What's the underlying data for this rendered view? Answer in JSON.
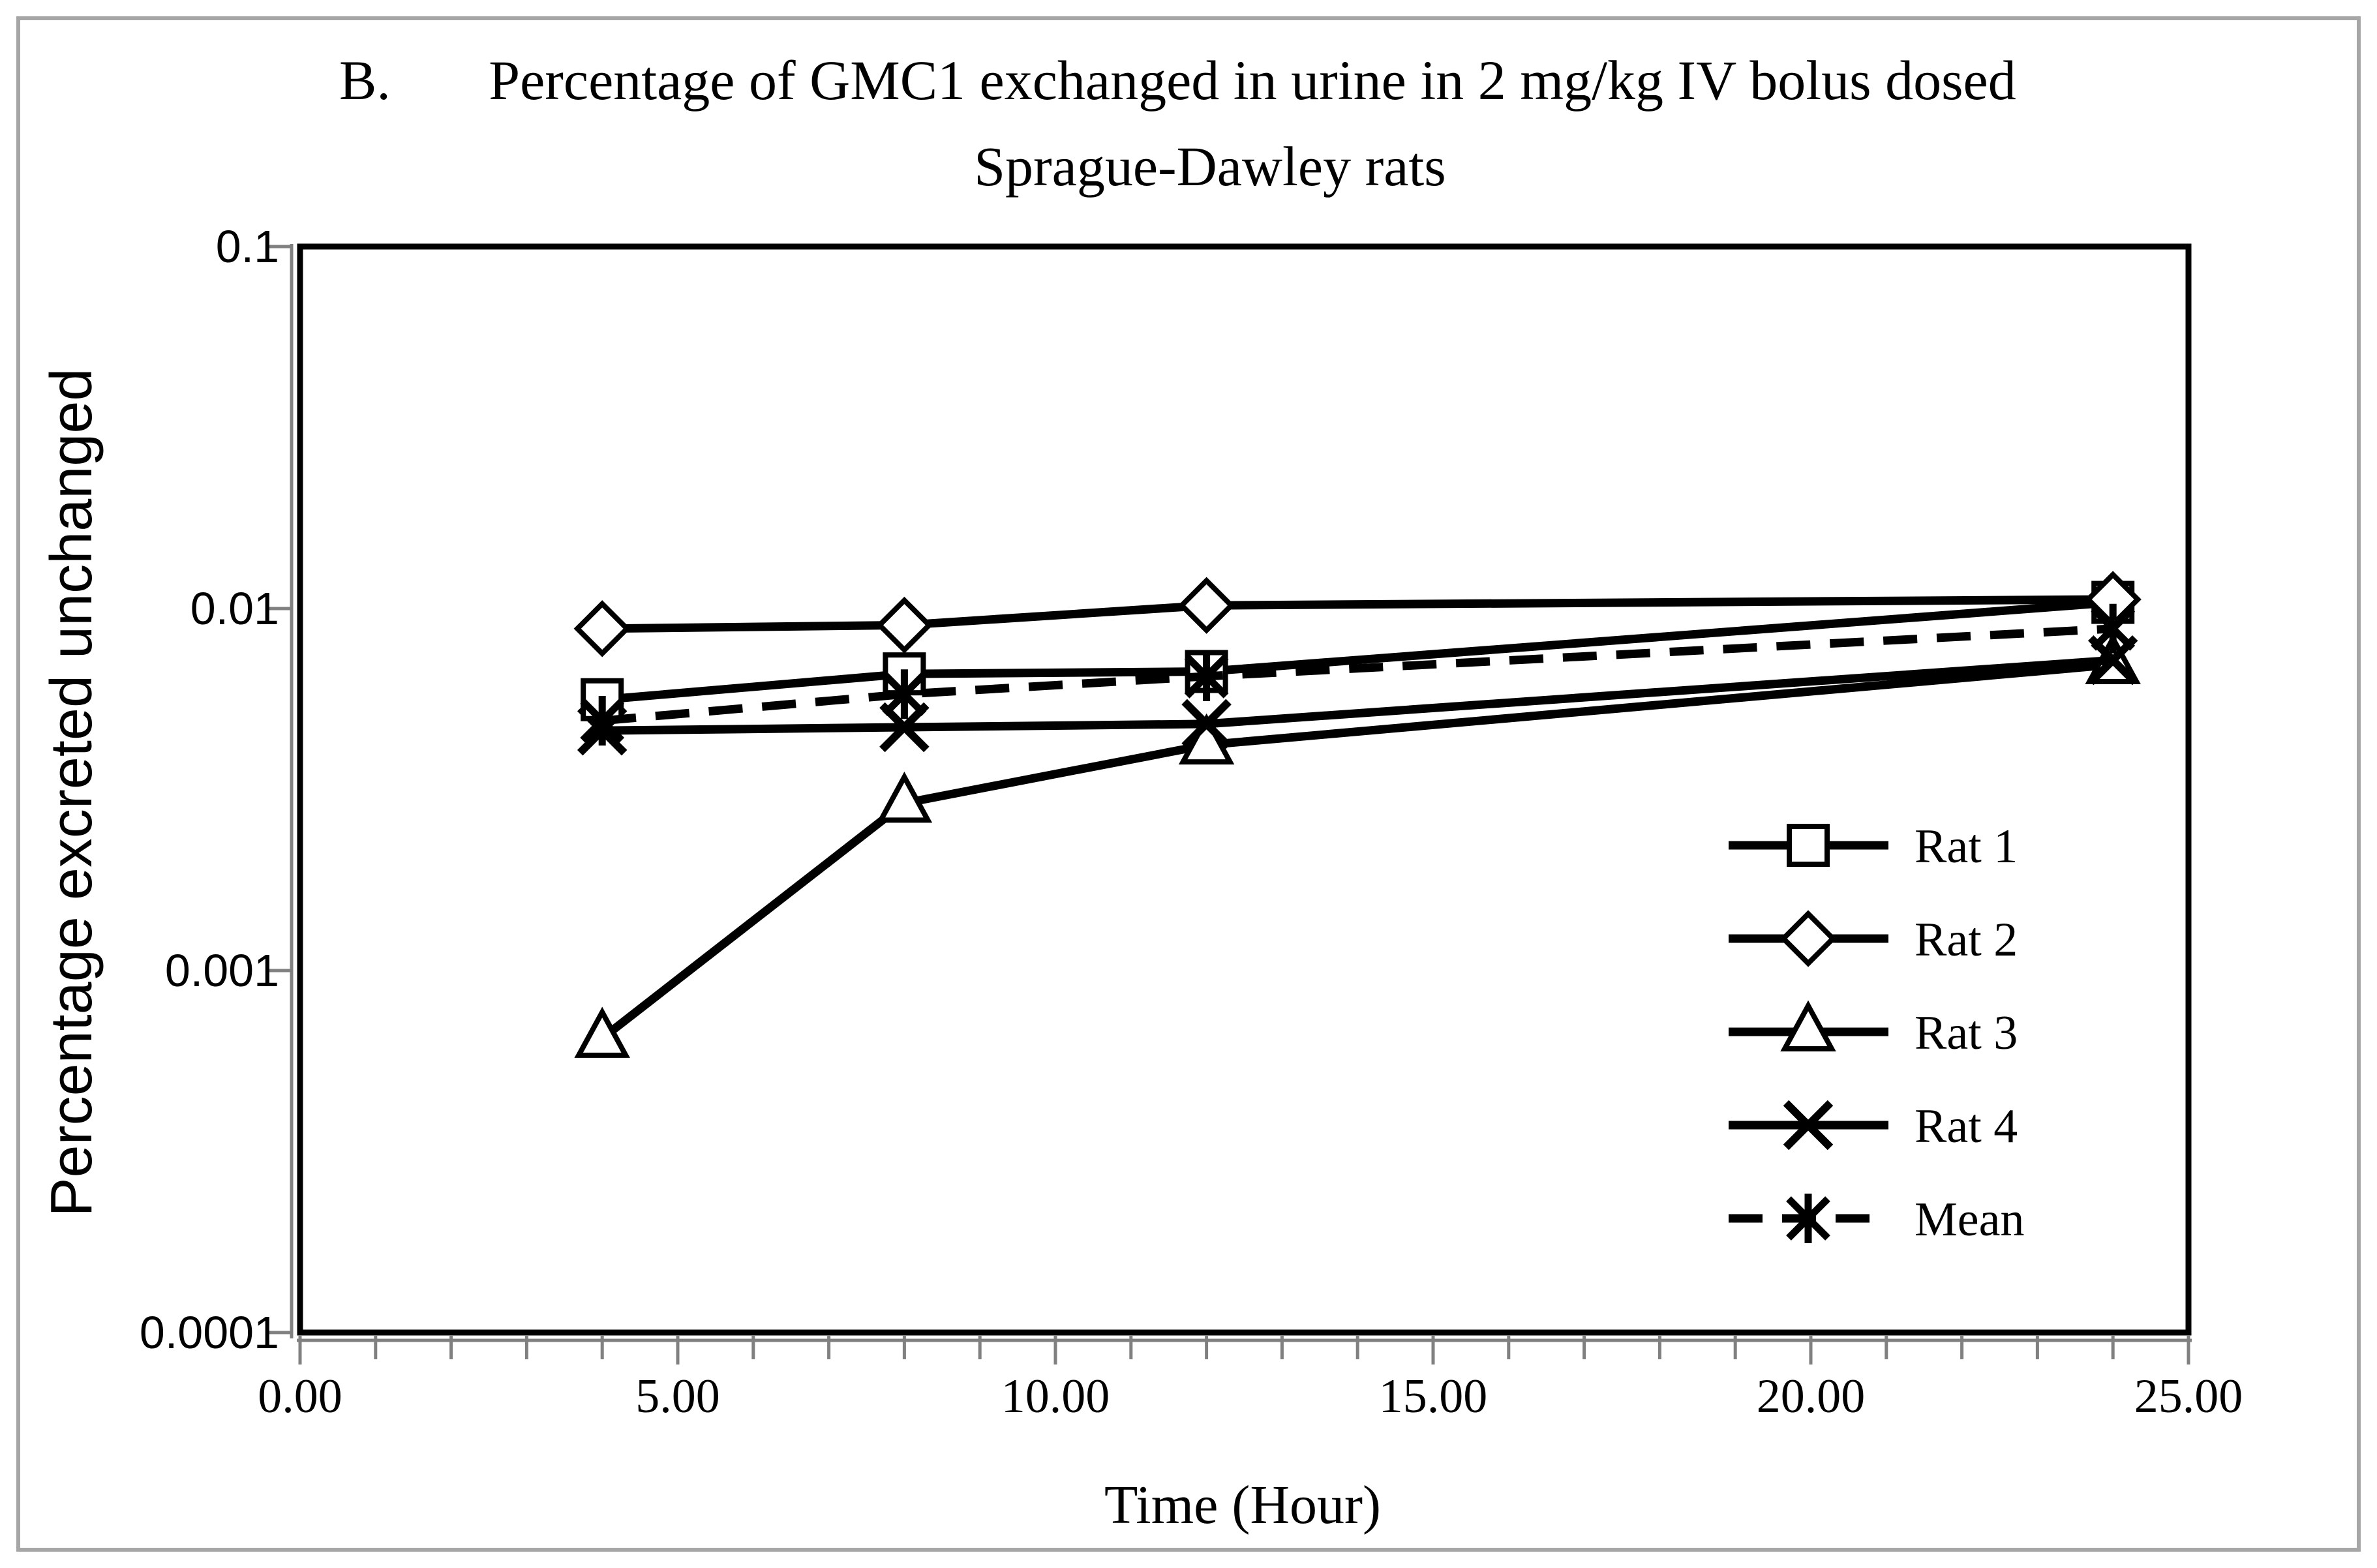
{
  "figure": {
    "title_prefix": "B.",
    "title_line1": "Percentage of GMC1 exchanged in urine in 2 mg/kg IV bolus dosed",
    "title_line2": "Sprague-Dawley rats"
  },
  "chart_data": {
    "type": "line",
    "title": "B. Percentage of GMC1 exchanged in urine in 2 mg/kg IV bolus dosed Sprague-Dawley rats",
    "xlabel": "Time (Hour)",
    "ylabel": "Percentage excreted unchanged",
    "x_scale": "linear",
    "y_scale": "log10",
    "xlim": [
      0,
      25
    ],
    "ylim": [
      0.0001,
      0.1
    ],
    "grid": false,
    "legend_position": "inside-right",
    "x_tick_labels": [
      "0.00",
      "5.00",
      "10.00",
      "15.00",
      "20.00",
      "25.00"
    ],
    "x_tick_values": [
      0,
      5,
      10,
      15,
      20,
      25
    ],
    "x_minor_tick_step": 1,
    "y_tick_labels": [
      "0.1",
      "0.01",
      "0.001",
      "0.0001"
    ],
    "y_tick_values": [
      0.1,
      0.01,
      0.001,
      0.0001
    ],
    "x": [
      4,
      8,
      12,
      24
    ],
    "series": [
      {
        "name": "Rat 1",
        "marker": "square",
        "line": "solid",
        "values": [
          0.0056,
          0.0066,
          0.0067,
          0.0104
        ]
      },
      {
        "name": "Rat 2",
        "marker": "diamond",
        "line": "solid",
        "values": [
          0.0088,
          0.009,
          0.0102,
          0.0106
        ]
      },
      {
        "name": "Rat 3",
        "marker": "triangle",
        "line": "solid",
        "values": [
          0.00065,
          0.0029,
          0.0042,
          0.007
        ]
      },
      {
        "name": "Rat 4",
        "marker": "x",
        "line": "solid",
        "values": [
          0.0046,
          0.0047,
          0.0048,
          0.0072
        ]
      },
      {
        "name": "Mean",
        "marker": "asterisk",
        "line": "dashed",
        "values": [
          0.0049,
          0.0058,
          0.0065,
          0.0088
        ]
      }
    ],
    "colors": {
      "series": "#000000",
      "axis": "#000000",
      "tick": "#808080",
      "figure_border": "#a6a6a6",
      "background": "#ffffff"
    }
  }
}
